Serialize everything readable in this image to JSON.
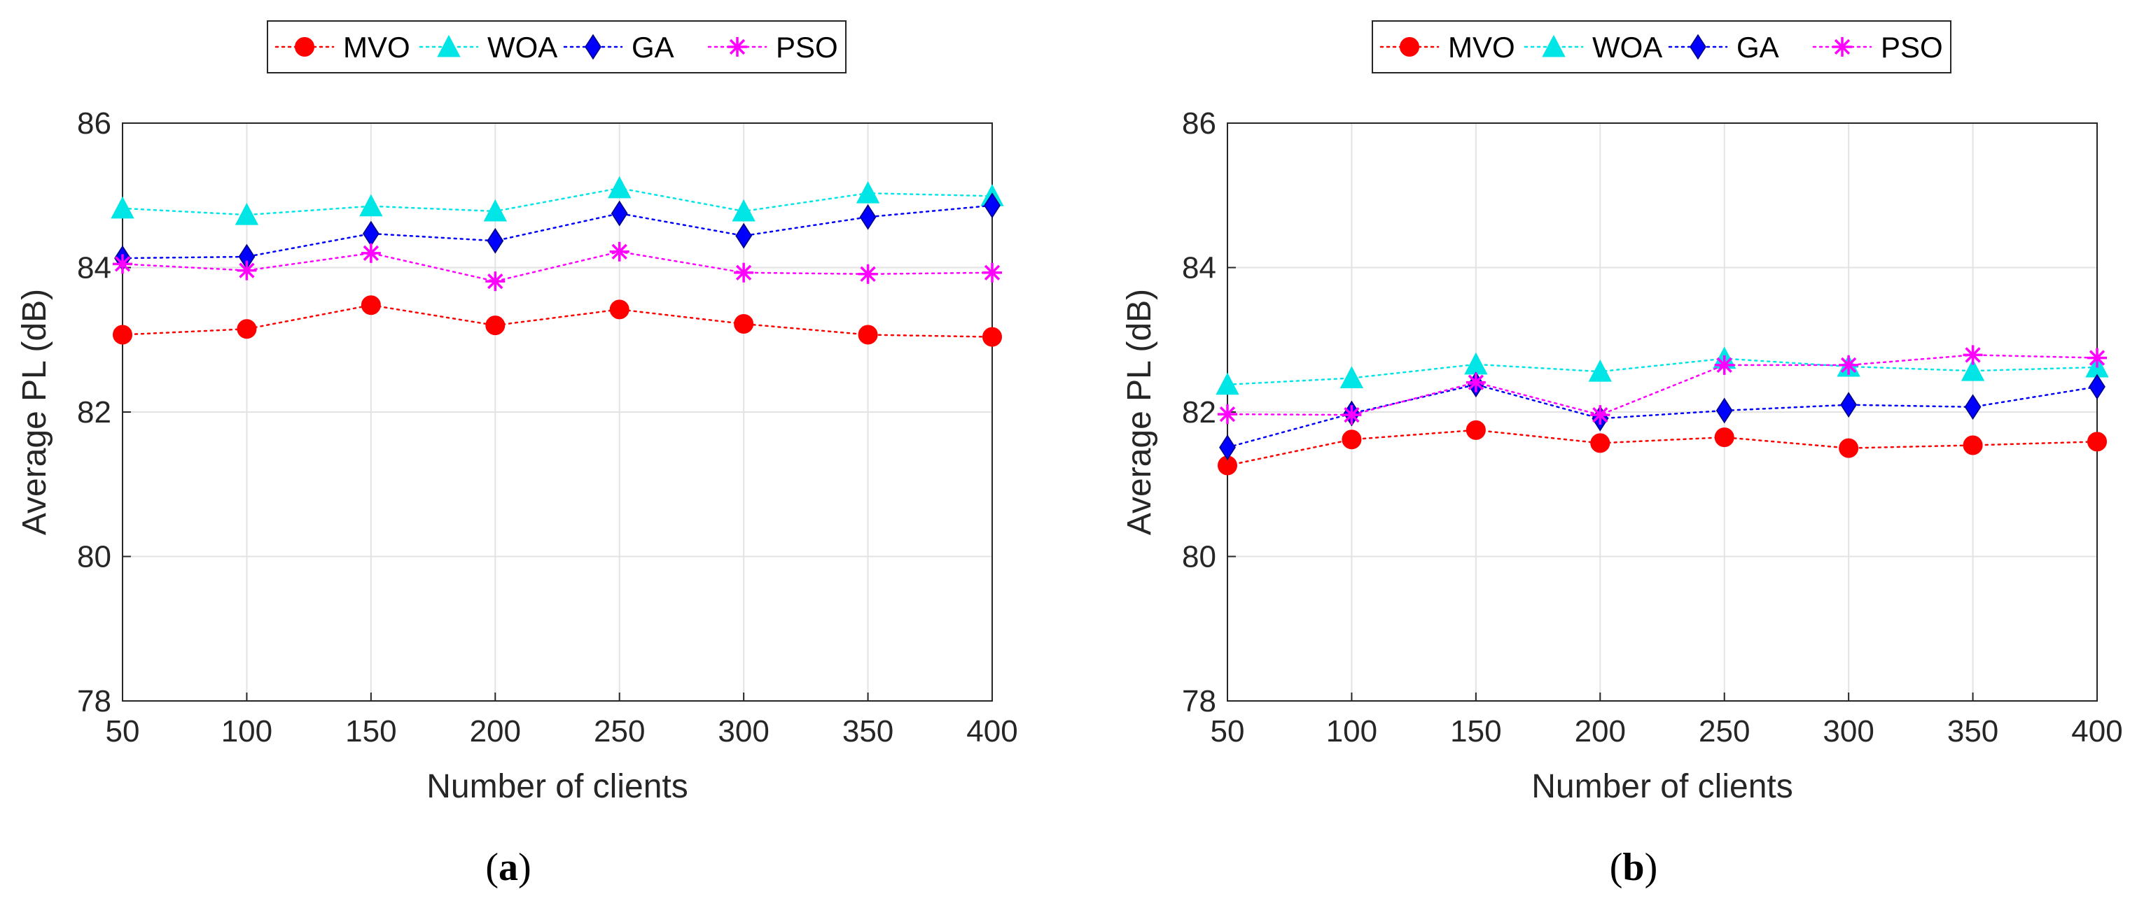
{
  "chart_data": [
    {
      "type": "line",
      "caption_open": "(",
      "caption_letter": "a",
      "caption_close": ")",
      "xlabel": "Number of clients",
      "ylabel": "Average PL (dB)",
      "x": [
        50,
        100,
        150,
        200,
        250,
        300,
        350,
        400
      ],
      "xlim": [
        50,
        400
      ],
      "ylim": [
        78,
        86
      ],
      "xticks": [
        50,
        100,
        150,
        200,
        250,
        300,
        350,
        400
      ],
      "yticks": [
        78,
        80,
        82,
        84,
        86
      ],
      "grid": true,
      "legend_position": "top-center",
      "series": [
        {
          "name": "MVO",
          "marker": "circle",
          "color": "#ff0000",
          "values": [
            83.07,
            83.15,
            83.48,
            83.2,
            83.42,
            83.22,
            83.07,
            83.04
          ]
        },
        {
          "name": "WOA",
          "marker": "triangle",
          "color": "#00e5e5",
          "values": [
            84.82,
            84.73,
            84.85,
            84.78,
            85.1,
            84.78,
            85.03,
            84.99
          ]
        },
        {
          "name": "GA",
          "marker": "diamond",
          "color": "#0000ff",
          "values": [
            84.13,
            84.15,
            84.47,
            84.37,
            84.75,
            84.44,
            84.7,
            84.86
          ]
        },
        {
          "name": "PSO",
          "marker": "asterisk",
          "color": "#ff00ff",
          "values": [
            84.05,
            83.96,
            84.2,
            83.81,
            84.22,
            83.93,
            83.91,
            83.93
          ]
        }
      ]
    },
    {
      "type": "line",
      "caption_open": "(",
      "caption_letter": "b",
      "caption_close": ")",
      "xlabel": "Number of clients",
      "ylabel": "Average PL (dB)",
      "x": [
        50,
        100,
        150,
        200,
        250,
        300,
        350,
        400
      ],
      "xlim": [
        50,
        400
      ],
      "ylim": [
        78,
        86
      ],
      "xticks": [
        50,
        100,
        150,
        200,
        250,
        300,
        350,
        400
      ],
      "yticks": [
        78,
        80,
        82,
        84,
        86
      ],
      "grid": true,
      "legend_position": "top-center",
      "series": [
        {
          "name": "MVO",
          "marker": "circle",
          "color": "#ff0000",
          "values": [
            81.26,
            81.62,
            81.75,
            81.57,
            81.65,
            81.5,
            81.54,
            81.59
          ]
        },
        {
          "name": "WOA",
          "marker": "triangle",
          "color": "#00e5e5",
          "values": [
            82.38,
            82.47,
            82.66,
            82.56,
            82.74,
            82.63,
            82.57,
            82.62
          ]
        },
        {
          "name": "GA",
          "marker": "diamond",
          "color": "#0000ff",
          "values": [
            81.51,
            81.98,
            82.38,
            81.91,
            82.02,
            82.1,
            82.07,
            82.35
          ]
        },
        {
          "name": "PSO",
          "marker": "asterisk",
          "color": "#ff00ff",
          "values": [
            81.97,
            81.96,
            82.41,
            81.96,
            82.65,
            82.65,
            82.79,
            82.75
          ]
        }
      ]
    }
  ]
}
